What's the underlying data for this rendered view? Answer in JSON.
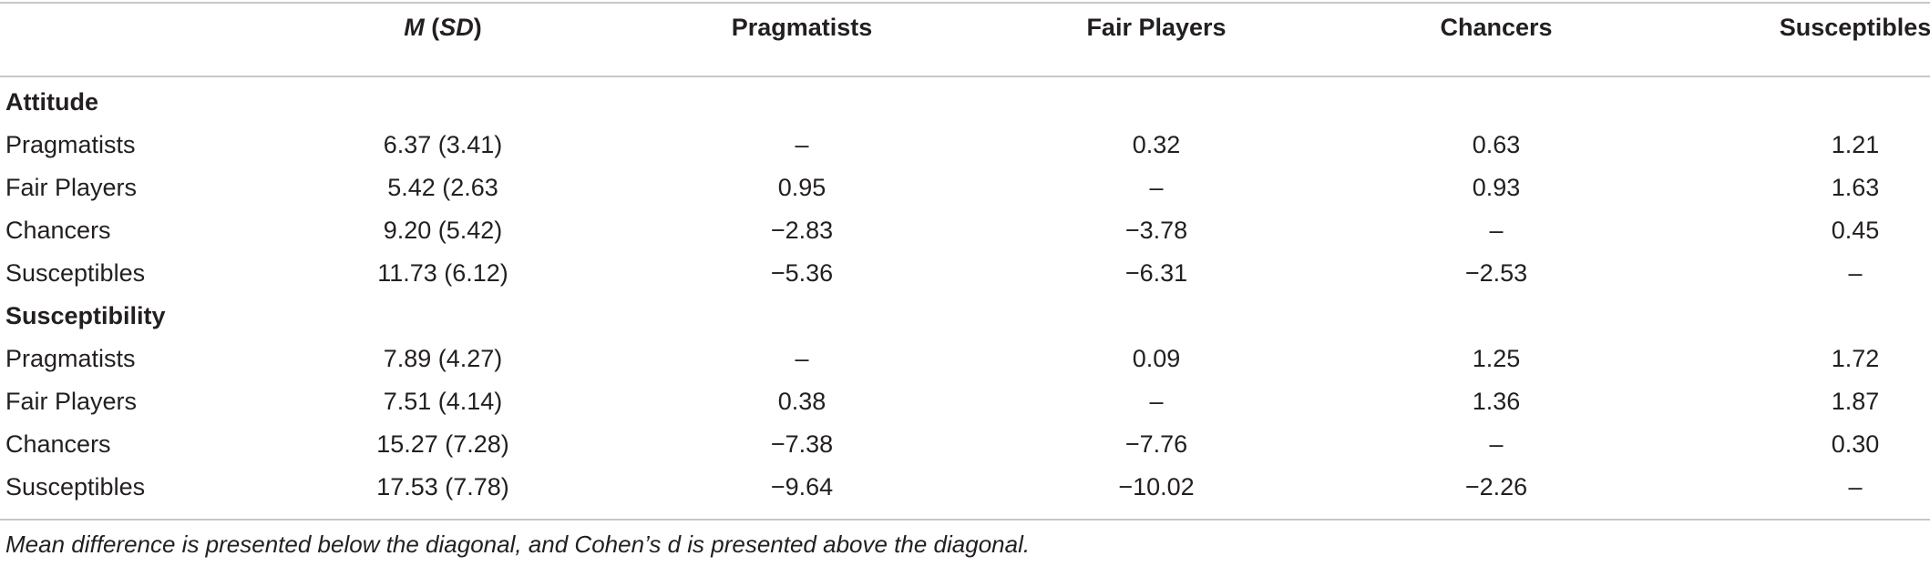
{
  "header": {
    "col_row": "",
    "col_msd_m": "M",
    "col_msd_open": " (",
    "col_msd_sd": "SD",
    "col_msd_close": ")",
    "col_pragmatists": "Pragmatists",
    "col_fair_players": "Fair Players",
    "col_chancers": "Chancers",
    "col_susceptibles": "Susceptibles"
  },
  "sections": [
    {
      "title": "Attitude",
      "rows": [
        {
          "label": "Pragmatists",
          "msd": "6.37 (3.41)",
          "pragmatists": "–",
          "fair_players": "0.32",
          "chancers": "0.63",
          "susceptibles": "1.21"
        },
        {
          "label": "Fair Players",
          "msd": "5.42 (2.63",
          "pragmatists": "0.95",
          "fair_players": "–",
          "chancers": "0.93",
          "susceptibles": "1.63"
        },
        {
          "label": "Chancers",
          "msd": "9.20 (5.42)",
          "pragmatists": "−2.83",
          "fair_players": "−3.78",
          "chancers": "–",
          "susceptibles": "0.45"
        },
        {
          "label": "Susceptibles",
          "msd": "11.73 (6.12)",
          "pragmatists": "−5.36",
          "fair_players": "−6.31",
          "chancers": "−2.53",
          "susceptibles": "–"
        }
      ]
    },
    {
      "title": "Susceptibility",
      "rows": [
        {
          "label": "Pragmatists",
          "msd": "7.89 (4.27)",
          "pragmatists": "–",
          "fair_players": "0.09",
          "chancers": "1.25",
          "susceptibles": "1.72"
        },
        {
          "label": "Fair Players",
          "msd": "7.51 (4.14)",
          "pragmatists": "0.38",
          "fair_players": "–",
          "chancers": "1.36",
          "susceptibles": "1.87"
        },
        {
          "label": "Chancers",
          "msd": "15.27 (7.28)",
          "pragmatists": "−7.38",
          "fair_players": "−7.76",
          "chancers": "–",
          "susceptibles": "0.30"
        },
        {
          "label": "Susceptibles",
          "msd": "17.53 (7.78)",
          "pragmatists": "−9.64",
          "fair_players": "−10.02",
          "chancers": "−2.26",
          "susceptibles": "–"
        }
      ]
    }
  ],
  "footnote": "Mean difference is presented below the diagonal, and Cohen’s d is presented above the diagonal."
}
